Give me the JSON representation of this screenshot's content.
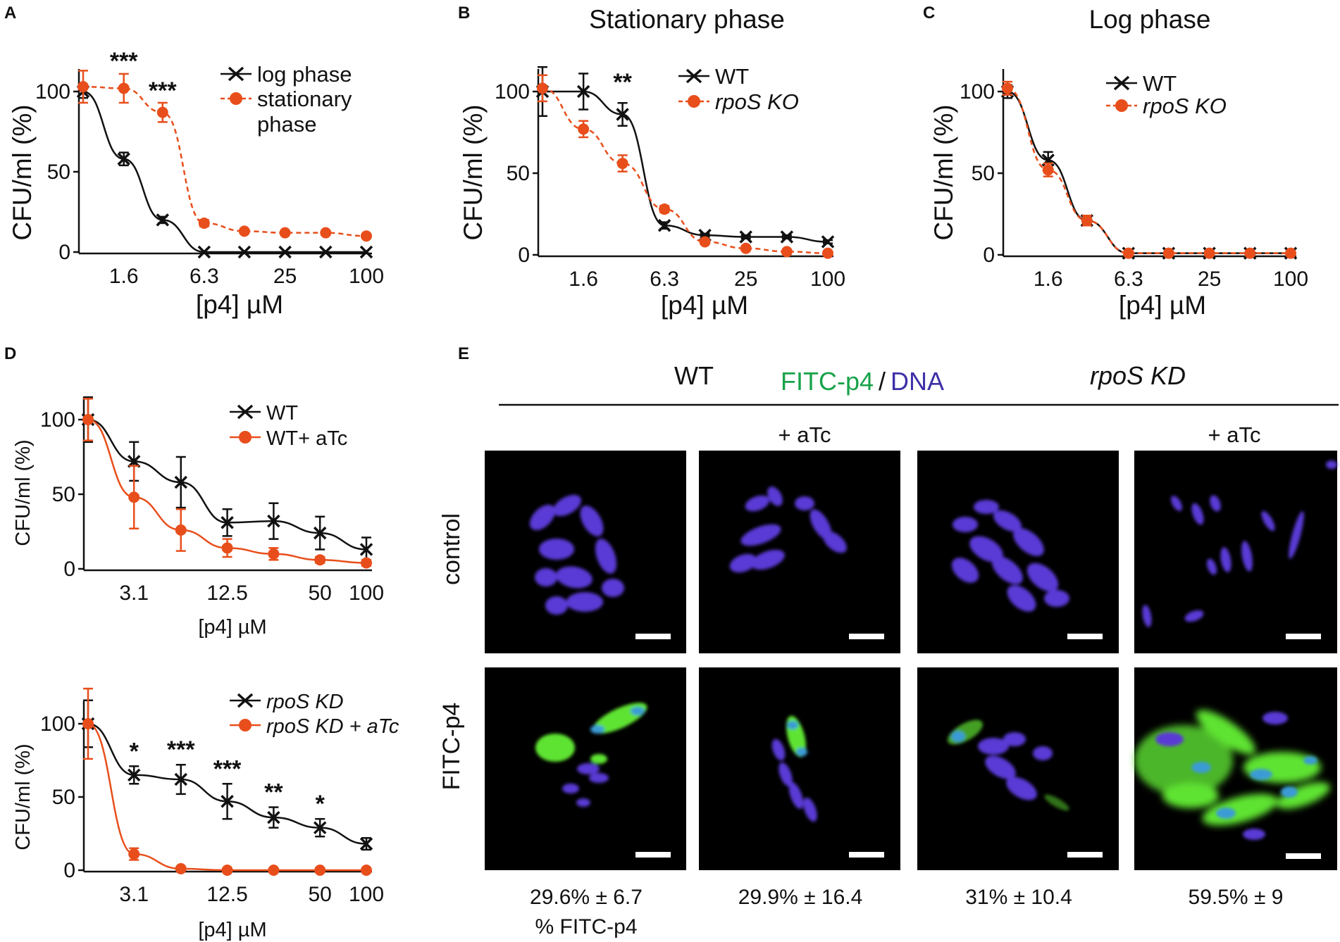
{
  "panels": {
    "A": "A",
    "B": "B",
    "C": "C",
    "D": "D",
    "E": "E"
  },
  "colors": {
    "black": "#111111",
    "orange": "#e84e1b",
    "green": "#17a34a",
    "blue": "#3d2fa8",
    "image_bg": "#000000",
    "cell_purple": "#5a3ad6",
    "cell_green": "#5fe332"
  },
  "chart_data": [
    {
      "id": "A",
      "type": "line",
      "title": "",
      "ylabel": "CFU/ml (%)",
      "xlabel": "[p4] µM",
      "xscale": "log2",
      "xlim": [
        0.8,
        100
      ],
      "ylim": [
        0,
        100
      ],
      "xticks": [
        "1.6",
        "6.3",
        "25",
        "100"
      ],
      "xtick_values": [
        1.6,
        6.3,
        25,
        100
      ],
      "yticks": [
        "0",
        "50",
        "100"
      ],
      "ytick_values": [
        0,
        50,
        100
      ],
      "significance": [
        {
          "x": 1.6,
          "label": "***"
        },
        {
          "x": 3.1,
          "label": "***"
        }
      ],
      "series": [
        {
          "name": "log phase",
          "color": "#111111",
          "marker": "x",
          "dashed": false,
          "x": [
            0.8,
            1.6,
            3.1,
            6.3,
            12.5,
            25,
            50,
            100
          ],
          "y": [
            100,
            58,
            20,
            0,
            0,
            0,
            0,
            0
          ],
          "err": [
            4,
            4,
            2,
            0,
            0,
            0,
            0,
            0
          ]
        },
        {
          "name": "stationary\nphase",
          "color": "#e84e1b",
          "marker": "o",
          "dashed": true,
          "x": [
            0.8,
            1.6,
            3.1,
            6.3,
            12.5,
            25,
            50,
            100
          ],
          "y": [
            103,
            102,
            87,
            18,
            13,
            12,
            12,
            10
          ],
          "err": [
            10,
            9,
            6,
            2,
            1,
            1,
            1,
            1
          ]
        }
      ]
    },
    {
      "id": "B",
      "type": "line",
      "title": "Stationary phase",
      "ylabel": "CFU/ml (%)",
      "xlabel": "[p4] µM",
      "xscale": "log2",
      "xlim": [
        0.8,
        100
      ],
      "ylim": [
        0,
        100
      ],
      "xticks": [
        "1.6",
        "6.3",
        "25",
        "100"
      ],
      "xtick_values": [
        1.6,
        6.3,
        25,
        100
      ],
      "yticks": [
        "0",
        "50",
        "100"
      ],
      "ytick_values": [
        0,
        50,
        100
      ],
      "significance": [
        {
          "x": 3.1,
          "label": "**"
        }
      ],
      "series": [
        {
          "name": "WT",
          "color": "#111111",
          "marker": "x",
          "dashed": false,
          "x": [
            0.8,
            1.6,
            3.1,
            6.3,
            12.5,
            25,
            50,
            100
          ],
          "y": [
            100,
            100,
            86,
            18,
            12,
            11,
            11,
            8
          ],
          "err": [
            15,
            11,
            7,
            2,
            1,
            1,
            1,
            1
          ]
        },
        {
          "name": "rpoS KO",
          "color": "#e84e1b",
          "marker": "o",
          "dashed": true,
          "x": [
            0.8,
            1.6,
            3.1,
            6.3,
            12.5,
            25,
            50,
            100
          ],
          "y": [
            102,
            77,
            56,
            28,
            8,
            4,
            2,
            1
          ],
          "err": [
            8,
            5,
            5,
            2,
            1,
            1,
            1,
            1
          ]
        }
      ]
    },
    {
      "id": "C",
      "type": "line",
      "title": "Log phase",
      "ylabel": "CFU/ml (%)",
      "xlabel": "[p4] µM",
      "xscale": "log2",
      "xlim": [
        0.8,
        100
      ],
      "ylim": [
        0,
        100
      ],
      "xticks": [
        "1.6",
        "6.3",
        "25",
        "100"
      ],
      "xtick_values": [
        1.6,
        6.3,
        25,
        100
      ],
      "yticks": [
        "0",
        "50",
        "100"
      ],
      "ytick_values": [
        0,
        50,
        100
      ],
      "significance": [],
      "series": [
        {
          "name": "WT",
          "color": "#111111",
          "marker": "x",
          "dashed": false,
          "x": [
            0.8,
            1.6,
            3.1,
            6.3,
            12.5,
            25,
            50,
            100
          ],
          "y": [
            100,
            58,
            21,
            1,
            1,
            1,
            1,
            1
          ],
          "err": [
            4,
            5,
            3,
            0,
            0,
            0,
            0,
            0
          ]
        },
        {
          "name": "rpoS KO",
          "color": "#e84e1b",
          "marker": "o",
          "dashed": true,
          "x": [
            0.8,
            1.6,
            3.1,
            6.3,
            12.5,
            25,
            50,
            100
          ],
          "y": [
            102,
            52,
            21,
            1,
            1,
            1,
            1,
            1
          ],
          "err": [
            4,
            4,
            3,
            0,
            0,
            0,
            0,
            0
          ]
        }
      ]
    },
    {
      "id": "D-top",
      "type": "line",
      "title": "",
      "ylabel": "CFU/ml (%)",
      "xlabel": "[p4] µM",
      "xscale": "log2",
      "xlim": [
        1.56,
        100
      ],
      "ylim": [
        0,
        100
      ],
      "xticks": [
        "3.1",
        "12.5",
        "50",
        "100"
      ],
      "xtick_values": [
        3.1,
        12.5,
        50,
        100
      ],
      "yticks": [
        "0",
        "50",
        "100"
      ],
      "ytick_values": [
        0,
        50,
        100
      ],
      "significance": [],
      "series": [
        {
          "name": "WT",
          "color": "#111111",
          "marker": "x",
          "dashed": false,
          "x": [
            1.56,
            3.1,
            6.25,
            12.5,
            25,
            50,
            100
          ],
          "y": [
            100,
            72,
            58,
            31,
            32,
            24,
            13
          ],
          "err": [
            15,
            13,
            17,
            9,
            12,
            11,
            8
          ]
        },
        {
          "name": "WT+ aTc",
          "color": "#e84e1b",
          "marker": "o",
          "dashed": false,
          "x": [
            1.56,
            3.1,
            6.25,
            12.5,
            25,
            50,
            100
          ],
          "y": [
            100,
            48,
            26,
            14,
            10,
            6,
            4
          ],
          "err": [
            14,
            21,
            14,
            6,
            4,
            2,
            2
          ]
        }
      ]
    },
    {
      "id": "D-bottom",
      "type": "line",
      "title": "",
      "ylabel": "CFU/ml (%)",
      "xlabel": "[p4] µM",
      "xscale": "log2",
      "xlim": [
        1.56,
        100
      ],
      "ylim": [
        0,
        100
      ],
      "xticks": [
        "3.1",
        "12.5",
        "50",
        "100"
      ],
      "xtick_values": [
        3.1,
        12.5,
        50,
        100
      ],
      "yticks": [
        "0",
        "50",
        "100"
      ],
      "ytick_values": [
        0,
        50,
        100
      ],
      "significance": [
        {
          "x": 3.1,
          "label": "*"
        },
        {
          "x": 6.25,
          "label": "***"
        },
        {
          "x": 12.5,
          "label": "***"
        },
        {
          "x": 25,
          "label": "**"
        },
        {
          "x": 50,
          "label": "*"
        }
      ],
      "series": [
        {
          "name": "rpoS KD",
          "color": "#111111",
          "marker": "x",
          "dashed": false,
          "x": [
            1.56,
            3.1,
            6.25,
            12.5,
            25,
            50,
            100
          ],
          "y": [
            100,
            65,
            62,
            47,
            36,
            29,
            18
          ],
          "err": [
            16,
            6,
            10,
            12,
            7,
            6,
            4
          ]
        },
        {
          "name": "rpoS KD + aTc",
          "color": "#e84e1b",
          "marker": "o",
          "dashed": false,
          "x": [
            1.56,
            3.1,
            6.25,
            12.5,
            25,
            50,
            100
          ],
          "y": [
            100,
            11,
            1,
            0,
            0,
            0,
            0
          ],
          "err": [
            24,
            4,
            0,
            0,
            0,
            0,
            0
          ]
        }
      ]
    }
  ],
  "panel_E": {
    "header_wt": "WT",
    "header_mid_green": "FITC-p4",
    "header_mid_slash": "/",
    "header_mid_blue": "DNA",
    "header_kd": "rpoS KD",
    "sub_atc_1": "+ aTc",
    "sub_atc_2": "+ aTc",
    "row_control": "control",
    "row_fitc": "FITC-p4",
    "captions": [
      "29.6% ± 6.7",
      "29.9% ± 16.4",
      "31% ± 10.4",
      "59.5% ± 9"
    ],
    "caption_unit": "% FITC-p4"
  }
}
